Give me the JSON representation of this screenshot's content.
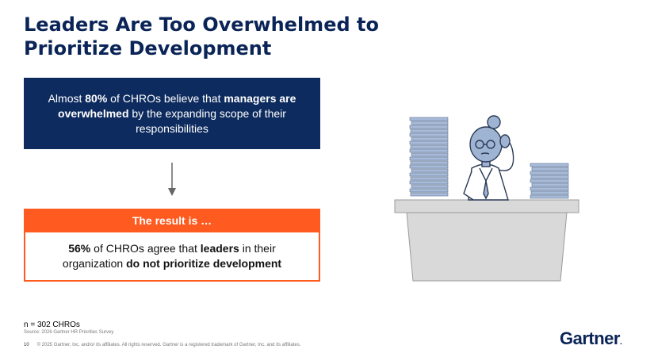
{
  "title": {
    "line1": "Leaders Are Too Overwhelmed to",
    "line2": "Prioritize Development"
  },
  "top_box": {
    "part1": "Almost ",
    "part2": "80%",
    "part3": " of CHROs believe that ",
    "part4": "managers are overwhelmed",
    "part5": " by the expanding scope of their responsibilities"
  },
  "result": {
    "header": "The result is …",
    "part1": "56%",
    "part2": " of CHROs agree that ",
    "part3": "leaders",
    "part4": " in their organization ",
    "part5": "do not prioritize development"
  },
  "footnote": {
    "sample": "n = 302 CHROs",
    "source": "Source: 2026 Gartner HR Priorities Survey",
    "page_number": "10",
    "copyright": "© 2025 Gartner, Inc. and/or its affiliates. All rights reserved. Gartner is a registered trademark of Gartner, Inc. and its affiliates."
  },
  "logo": {
    "text": "Gartner"
  },
  "colors": {
    "navy": "#0d2b5e",
    "orange": "#ff5a1f",
    "desk_gray": "#d9d9d9",
    "paper_blue": "#9fb4d3"
  }
}
